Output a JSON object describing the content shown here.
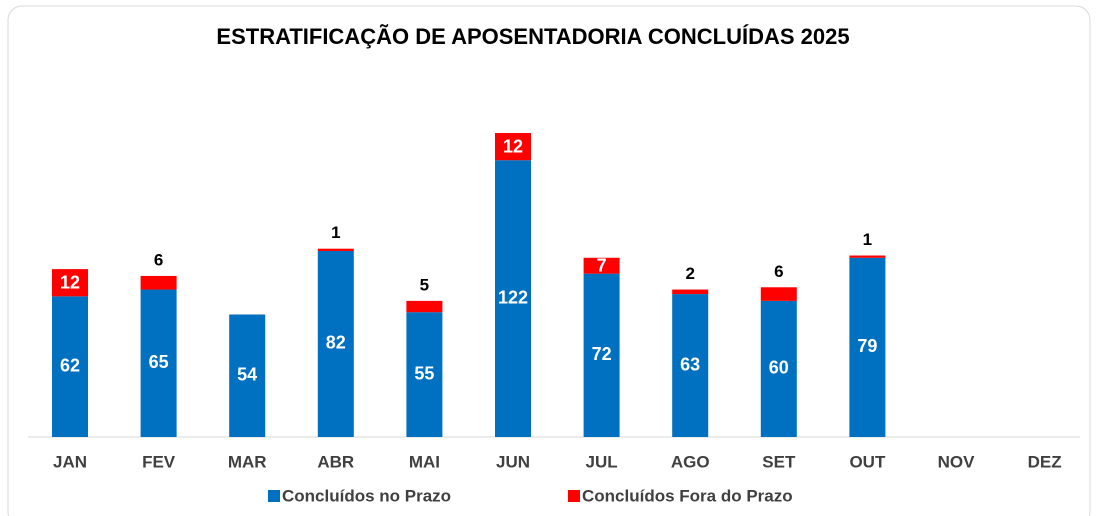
{
  "chart_data": {
    "type": "stacked_bar",
    "title": "ESTRATIFICAÇÃO DE APOSENTADORIA CONCLUÍDAS 2025",
    "categories": [
      "JAN",
      "FEV",
      "MAR",
      "ABR",
      "MAI",
      "JUN",
      "JUL",
      "AGO",
      "SET",
      "OUT",
      "NOV",
      "DEZ"
    ],
    "series": [
      {
        "name": "Concluídos no Prazo",
        "color": "#0070c0",
        "values": [
          62,
          65,
          54,
          82,
          55,
          122,
          72,
          63,
          60,
          79,
          null,
          null
        ]
      },
      {
        "name": "Concluídos Fora do Prazo",
        "color": "#ff0000",
        "values": [
          12,
          6,
          null,
          1,
          5,
          12,
          7,
          2,
          6,
          1,
          null,
          null
        ]
      }
    ],
    "legend": "bottom"
  }
}
